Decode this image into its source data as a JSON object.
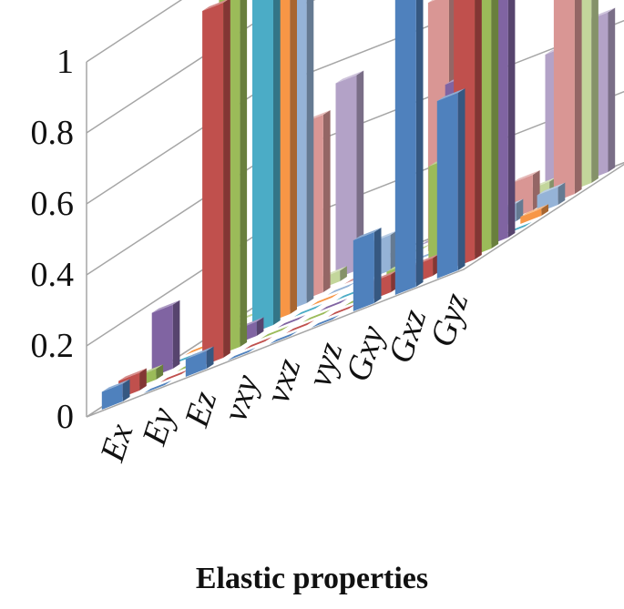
{
  "chart_data": {
    "type": "bar",
    "title": "",
    "xlabel": "Elastic properties",
    "ylabel": "",
    "ylim": [
      0,
      1
    ],
    "yticks": [
      "0",
      "0.2",
      "0.4",
      "0.6",
      "0.8",
      "1"
    ],
    "grid": true,
    "legend": "none",
    "categories": [
      "Ex",
      "Ey",
      "Ez",
      "vxy",
      "vxz",
      "vyz",
      "Gxy",
      "Gxz",
      "Gyz"
    ],
    "series": [
      {
        "color": "#4F81BD",
        "values": [
          0.05,
          0.0,
          0.05,
          0.0,
          0.0,
          0.0,
          0.2,
          1.0,
          0.5
        ]
      },
      {
        "color": "#C0504D",
        "values": [
          0.05,
          0.0,
          1.0,
          0.0,
          0.0,
          0.0,
          0.05,
          0.05,
          0.8
        ]
      },
      {
        "color": "#9BBB59",
        "values": [
          0.03,
          0.0,
          1.0,
          0.0,
          0.0,
          0.0,
          0.05,
          0.3,
          0.8
        ]
      },
      {
        "color": "#8064A2",
        "values": [
          0.18,
          0.0,
          0.04,
          0.0,
          0.0,
          0.0,
          0.0,
          0.5,
          1.0
        ]
      },
      {
        "color": "#4BACC6",
        "values": [
          0.0,
          0.0,
          1.0,
          0.0,
          0.0,
          0.0,
          0.0,
          0.0,
          0.0
        ]
      },
      {
        "color": "#F79646",
        "values": [
          0.0,
          0.0,
          1.0,
          0.0,
          0.0,
          0.0,
          0.0,
          0.0,
          0.02
        ]
      },
      {
        "color": "#95B3D7",
        "values": [
          0.0,
          0.0,
          1.0,
          0.0,
          0.1,
          0.0,
          0.0,
          0.05,
          0.05
        ]
      },
      {
        "color": "#D99694",
        "values": [
          0.0,
          0.0,
          0.5,
          0.0,
          0.0,
          0.7,
          0.0,
          0.1,
          1.0
        ]
      },
      {
        "color": "#C3D69B",
        "values": [
          0.0,
          0.0,
          0.03,
          0.0,
          0.0,
          1.0,
          0.0,
          0.05,
          1.0
        ]
      },
      {
        "color": "#B3A2C7",
        "values": [
          0.0,
          0.0,
          0.55,
          0.0,
          0.0,
          1.0,
          0.0,
          0.4,
          0.45
        ]
      }
    ]
  }
}
